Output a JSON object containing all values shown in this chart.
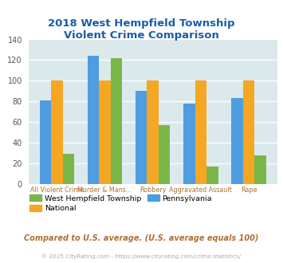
{
  "title": "2018 West Hempfield Township\nViolent Crime Comparison",
  "categories": [
    "All Violent Crime",
    "Murder & Mans...",
    "Robbery",
    "Aggravated Assault",
    "Rape"
  ],
  "west_hempfield": [
    29,
    122,
    57,
    17,
    28
  ],
  "national": [
    100,
    100,
    100,
    100,
    100
  ],
  "pennsylvania": [
    81,
    124,
    90,
    78,
    83
  ],
  "color_west": "#7ab648",
  "color_national": "#f5a623",
  "color_pennsylvania": "#4d9de0",
  "title_color": "#1a5ca8",
  "xlabel_color": "#b07030",
  "ylabel_min": 0,
  "ylabel_max": 140,
  "yticks": [
    0,
    20,
    40,
    60,
    80,
    100,
    120,
    140
  ],
  "bg_color": "#dce9ec",
  "legend_labels": [
    "West Hempfield Township",
    "National",
    "Pennsylvania"
  ],
  "note": "Compared to U.S. average. (U.S. average equals 100)",
  "footer": "© 2025 CityRating.com - https://www.cityrating.com/crime-statistics/"
}
